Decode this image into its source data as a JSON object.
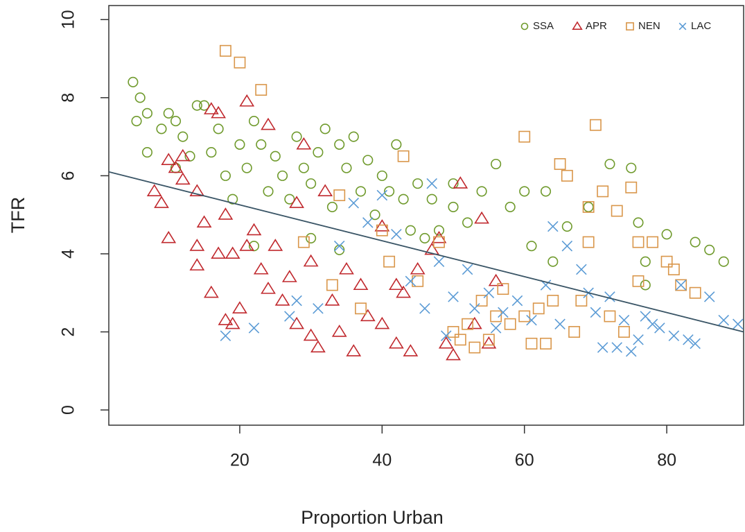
{
  "chart_data": {
    "type": "scatter",
    "xlabel": "Proportion Urban",
    "ylabel": "TFR",
    "xlim": [
      1.6,
      90.8
    ],
    "ylim": [
      -0.39,
      10.36
    ],
    "xticks": [
      20,
      40,
      60,
      80
    ],
    "yticks": [
      0,
      2,
      4,
      6,
      8,
      10
    ],
    "grid": false,
    "legend": "topright",
    "series": [
      {
        "name": "SSA",
        "color": "#6f9a2c",
        "marker": "circle",
        "x": [
          5,
          5.5,
          6,
          7,
          7,
          9,
          10,
          11,
          11,
          12,
          13,
          14,
          15,
          16,
          17,
          18,
          19,
          20,
          21,
          22,
          23,
          24,
          25,
          26,
          27,
          28,
          29,
          30,
          31,
          32,
          33,
          34,
          35,
          36,
          37,
          38,
          39,
          40,
          41,
          42,
          43,
          44,
          45,
          46,
          47,
          48,
          50,
          50,
          52,
          54,
          56,
          58,
          60,
          61,
          63,
          64,
          66,
          69,
          72,
          75,
          76,
          77,
          77,
          80,
          84,
          86,
          88,
          22,
          30,
          34
        ],
        "values": [
          8.4,
          7.4,
          8,
          7.6,
          6.6,
          7.2,
          7.6,
          7.4,
          6.2,
          7,
          6.5,
          7.8,
          7.8,
          6.6,
          7.2,
          6,
          5.4,
          6.8,
          6.2,
          7.4,
          6.8,
          5.6,
          6.5,
          6,
          5.4,
          7,
          6.2,
          5.8,
          6.6,
          7.2,
          5.2,
          6.8,
          6.2,
          7,
          5.6,
          6.4,
          5,
          6,
          5.6,
          6.8,
          5.4,
          4.6,
          5.8,
          4.4,
          5.4,
          4.6,
          5.8,
          5.2,
          4.8,
          5.6,
          6.3,
          5.2,
          5.6,
          4.2,
          5.6,
          3.8,
          4.7,
          5.2,
          6.3,
          6.2,
          4.8,
          3.8,
          3.2,
          4.5,
          4.3,
          4.1,
          3.8,
          4.2,
          4.4,
          4.1
        ]
      },
      {
        "name": "APR",
        "color": "#c0282d",
        "marker": "triangle",
        "x": [
          10,
          11,
          12,
          8,
          9,
          10,
          14,
          14,
          14,
          15,
          16,
          17,
          18,
          18,
          19,
          19,
          20,
          21,
          21,
          22,
          23,
          24,
          24,
          25,
          26,
          27,
          28,
          28,
          29,
          30,
          30,
          31,
          32,
          33,
          34,
          35,
          36,
          37,
          38,
          40,
          40,
          42,
          42,
          43,
          44,
          45,
          47,
          48,
          49,
          50,
          51,
          53,
          54,
          55,
          56,
          12,
          16,
          17
        ],
        "values": [
          6.4,
          6.2,
          5.9,
          5.6,
          5.3,
          4.4,
          5.6,
          4.2,
          3.7,
          4.8,
          3,
          4,
          5,
          2.3,
          2.2,
          4,
          2.6,
          4.2,
          7.9,
          4.6,
          3.6,
          3.1,
          7.3,
          4.2,
          2.8,
          3.4,
          2.2,
          5.3,
          6.8,
          1.9,
          3.8,
          1.6,
          5.6,
          2.8,
          2,
          3.6,
          1.5,
          3.2,
          2.4,
          2.2,
          4.7,
          3.2,
          1.7,
          3,
          1.5,
          3.6,
          4.1,
          4.4,
          1.7,
          1.4,
          5.8,
          2.2,
          4.9,
          1.7,
          3.3,
          6.5,
          7.7,
          7.6
        ]
      },
      {
        "name": "NEN",
        "color": "#d9964a",
        "marker": "square",
        "x": [
          18,
          20,
          23,
          29,
          33,
          34,
          37,
          40,
          41,
          43,
          45,
          48,
          50,
          51,
          52,
          53,
          54,
          55,
          56,
          57,
          58,
          60,
          60,
          61,
          62,
          63,
          64,
          65,
          66,
          67,
          68,
          69,
          69,
          70,
          71,
          72,
          73,
          75,
          76,
          76,
          78,
          80,
          81,
          82,
          84,
          74
        ],
        "values": [
          9.2,
          8.9,
          8.2,
          4.3,
          3.2,
          5.5,
          2.6,
          4.6,
          3.8,
          6.5,
          3.3,
          4.3,
          2,
          1.8,
          2.2,
          1.6,
          2.8,
          1.8,
          2.4,
          3.1,
          2.2,
          7,
          2.4,
          1.7,
          2.6,
          1.7,
          2.8,
          6.3,
          6,
          2,
          2.8,
          4.3,
          5.2,
          7.3,
          5.6,
          2.4,
          5.1,
          5.7,
          4.3,
          3.3,
          4.3,
          3.8,
          3.6,
          3.2,
          3,
          2
        ]
      },
      {
        "name": "LAC",
        "color": "#5b9bd5",
        "marker": "cross",
        "x": [
          18,
          22,
          27,
          28,
          31,
          34,
          36,
          38,
          40,
          42,
          44,
          46,
          47,
          48,
          50,
          52,
          53,
          55,
          57,
          59,
          61,
          63,
          64,
          65,
          66,
          68,
          69,
          70,
          71,
          72,
          73,
          74,
          75,
          76,
          77,
          78,
          79,
          81,
          82,
          83,
          84,
          86,
          88,
          90,
          49,
          56
        ],
        "values": [
          1.9,
          2.1,
          2.4,
          2.8,
          2.6,
          4.2,
          5.3,
          4.8,
          5.5,
          4.5,
          3.3,
          2.6,
          5.8,
          3.8,
          2.9,
          3.6,
          2.6,
          3,
          2.5,
          2.8,
          2.3,
          3.2,
          4.7,
          2.2,
          4.2,
          3.6,
          3,
          2.5,
          1.6,
          2.9,
          1.6,
          2.3,
          1.5,
          1.8,
          2.4,
          2.2,
          2.1,
          1.9,
          3.2,
          1.8,
          1.7,
          2.9,
          2.3,
          2.2,
          1.9,
          2.1
        ]
      }
    ],
    "trend": {
      "color": "#3a5566",
      "x": [
        1.6,
        90.8
      ],
      "values": [
        6.1,
        2.0
      ]
    }
  }
}
